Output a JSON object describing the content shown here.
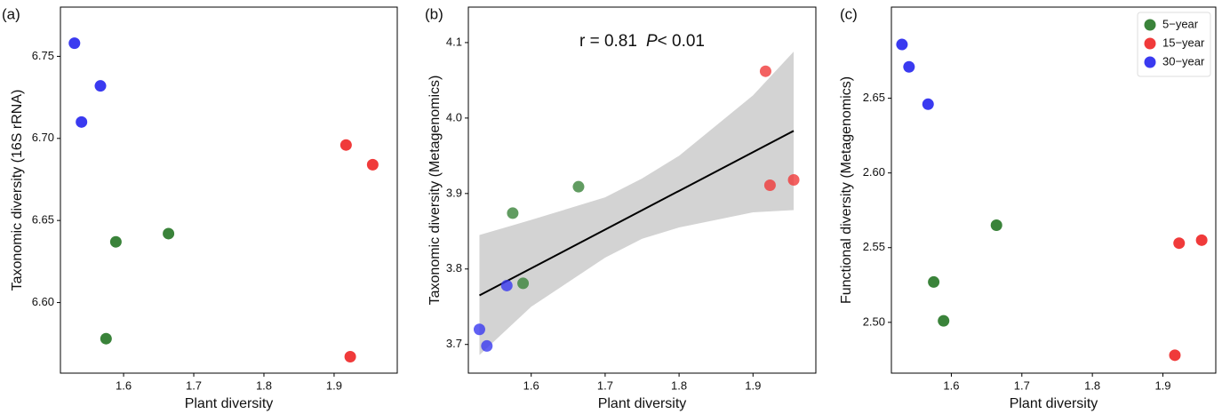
{
  "chart_data": [
    {
      "type": "scatter",
      "panel_label": "(a)",
      "xlabel": "Plant diversity",
      "ylabel": "Taxonomic diversity (16S rRNA)",
      "xlim": [
        1.51,
        1.99
      ],
      "xticks": [
        1.6,
        1.7,
        1.8,
        1.9
      ],
      "ylim": [
        6.557,
        6.78
      ],
      "yticks": [
        {
          "value": 6.6,
          "label": "6.60"
        },
        6.65,
        {
          "value": 6.7,
          "label": "6.70"
        },
        6.75
      ],
      "series": [
        {
          "color": "#3a833a",
          "x": [
            1.575,
            1.664,
            1.589
          ],
          "y": [
            6.578,
            6.642,
            6.637
          ]
        },
        {
          "color": "#f03a3a",
          "x": [
            1.917,
            1.923,
            1.955
          ],
          "y": [
            6.696,
            6.567,
            6.684
          ]
        },
        {
          "color": "#3a3af0",
          "x": [
            1.53,
            1.54,
            1.567
          ],
          "y": [
            6.758,
            6.71,
            6.732
          ]
        }
      ]
    },
    {
      "type": "scatter",
      "panel_label": "(b)",
      "xlabel": "Plant diversity",
      "ylabel": "Taxonomic diversity (Metagenomics)",
      "xlim": [
        1.515,
        1.985
      ],
      "xticks": [
        1.6,
        1.7,
        1.8,
        1.9
      ],
      "ylim": [
        3.662,
        4.147
      ],
      "yticks": [
        3.7,
        3.8,
        3.9,
        {
          "value": 4,
          "label": "4.0"
        },
        4.1
      ],
      "annotation": [
        "r = 0.81",
        "P",
        "< 0.01"
      ],
      "band": {
        "x": [
          1.53,
          1.6,
          1.7,
          1.75,
          1.8,
          1.9,
          1.955
        ],
        "lower": [
          3.686,
          3.75,
          3.815,
          3.84,
          3.855,
          3.875,
          3.878
        ],
        "upper": [
          3.845,
          3.865,
          3.895,
          3.92,
          3.95,
          4.03,
          4.088
        ]
      },
      "fit": {
        "x": [
          1.53,
          1.955
        ],
        "y": [
          3.765,
          3.983
        ]
      },
      "series": [
        {
          "color": "#3a833a",
          "x": [
            1.575,
            1.664,
            1.589
          ],
          "y": [
            3.874,
            3.909,
            3.781
          ]
        },
        {
          "color": "#f03a3a",
          "x": [
            1.917,
            1.923,
            1.955
          ],
          "y": [
            4.062,
            3.911,
            3.918
          ]
        },
        {
          "color": "#3a3af0",
          "x": [
            1.53,
            1.54,
            1.567
          ],
          "y": [
            3.72,
            3.698,
            3.778
          ]
        }
      ]
    },
    {
      "type": "scatter",
      "panel_label": "(c)",
      "xlabel": "Plant diversity",
      "ylabel": "Functional diversity (Metagenomics)",
      "xlim": [
        1.515,
        1.975
      ],
      "xticks": [
        1.6,
        1.7,
        1.8,
        1.9
      ],
      "ylim": [
        2.466,
        2.711
      ],
      "yticks": [
        {
          "value": 2.5,
          "label": "2.50"
        },
        2.55,
        {
          "value": 2.6,
          "label": "2.60"
        },
        2.65
      ],
      "legend": "upper right",
      "series": [
        {
          "name": "5−year",
          "color": "#3a833a",
          "x": [
            1.575,
            1.664,
            1.589
          ],
          "y": [
            2.527,
            2.565,
            2.501
          ]
        },
        {
          "name": "15−year",
          "color": "#f03a3a",
          "x": [
            1.917,
            1.923,
            1.955
          ],
          "y": [
            2.478,
            2.553,
            2.555
          ]
        },
        {
          "name": "30−year",
          "color": "#3a3af0",
          "x": [
            1.53,
            1.54,
            1.567
          ],
          "y": [
            2.686,
            2.671,
            2.646
          ]
        }
      ]
    }
  ]
}
